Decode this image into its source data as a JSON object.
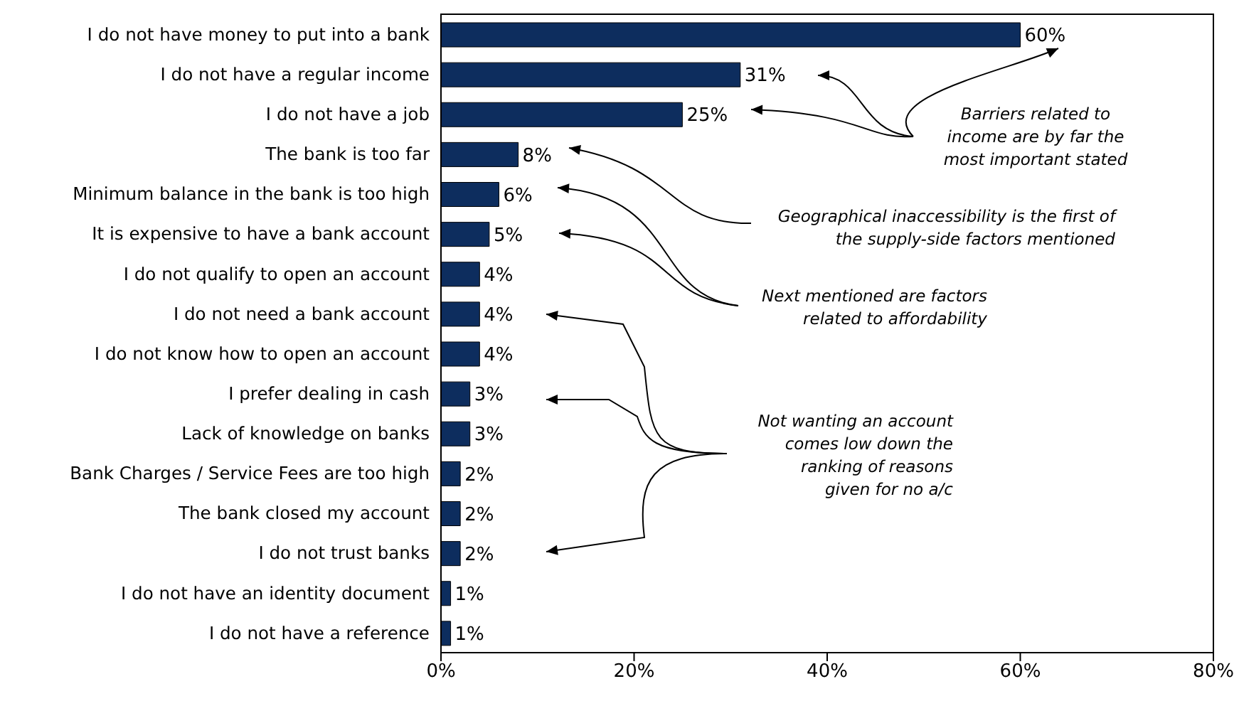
{
  "chart_data": {
    "type": "bar",
    "orientation": "horizontal",
    "categories": [
      "I do not have money to put into a bank",
      "I do not have a regular income",
      "I do not have a job",
      "The bank is too far",
      "Minimum balance in the bank is too high",
      "It is expensive to have a bank account",
      "I do not qualify to open an account",
      "I do not need a bank account",
      "I do not know how to open an account",
      "I prefer dealing in cash",
      "Lack of knowledge on banks",
      "Bank Charges / Service Fees are too high",
      "The bank closed my account",
      "I do not trust banks",
      "I do not have an identity document",
      "I do not have a reference"
    ],
    "values": [
      60,
      31,
      25,
      8,
      6,
      5,
      4,
      4,
      4,
      3,
      3,
      2,
      2,
      2,
      1,
      1
    ],
    "value_labels": [
      "60%",
      "31%",
      "25%",
      "8%",
      "6%",
      "5%",
      "4%",
      "4%",
      "4%",
      "3%",
      "3%",
      "2%",
      "2%",
      "2%",
      "1%",
      "1%"
    ],
    "color": "#0d2d5e",
    "xlim": [
      0,
      80
    ],
    "xticks": [
      {
        "value": 0,
        "label": "0%"
      },
      {
        "value": 20,
        "label": "20%"
      },
      {
        "value": 40,
        "label": "40%"
      },
      {
        "value": 60,
        "label": "60%"
      },
      {
        "value": 80,
        "label": "80%"
      }
    ],
    "annotations": [
      "Barriers related to income are by far the most important stated",
      "Geographical inaccessibility is the first of the supply-side factors mentioned",
      "Next mentioned are factors related to affordability",
      "Not wanting an account comes low down the ranking of reasons given for no a/c"
    ]
  }
}
